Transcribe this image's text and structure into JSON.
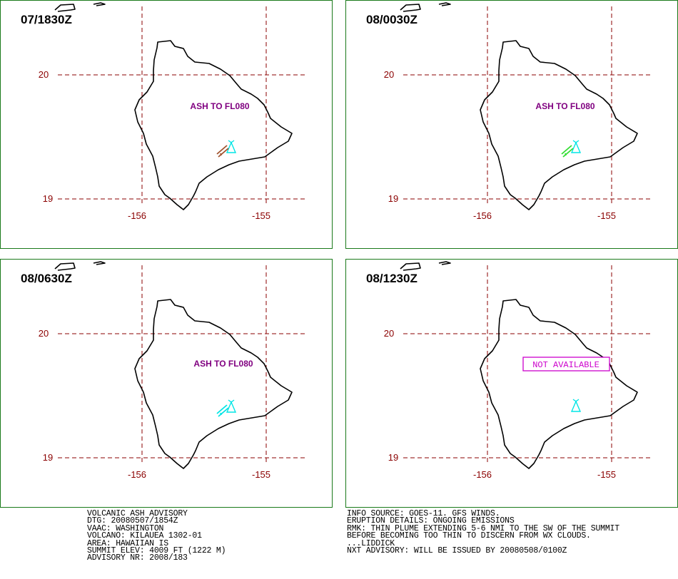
{
  "colors": {
    "frame": "#1a7a1a",
    "grid": "#8b0000",
    "coast": "#000000",
    "ash_label": "#800080",
    "not_available": "#cc00cc",
    "volcano": "#00e5e5",
    "plume_0": "#a0522d",
    "plume_1": "#33dd33",
    "plume_2": "#00e5e5"
  },
  "axes": {
    "lat_labels": [
      "20",
      "19"
    ],
    "lon_labels": [
      "-156",
      "-155"
    ]
  },
  "panels": [
    {
      "time": "07/1830Z",
      "label": "ASH TO FL080",
      "status": "ash",
      "plume_color": "#a0522d"
    },
    {
      "time": "08/0030Z",
      "label": "ASH TO FL080",
      "status": "ash",
      "plume_color": "#33dd33"
    },
    {
      "time": "08/0630Z",
      "label": "ASH TO FL080",
      "status": "ash",
      "plume_color": "#00e5e5"
    },
    {
      "time": "08/1230Z",
      "label": "NOT AVAILABLE",
      "status": "not_available",
      "plume_color": ""
    }
  ],
  "advisory_left": [
    "VOLCANIC ASH ADVISORY",
    "DTG: 20080507/1854Z",
    "VAAC: WASHINGTON",
    "VOLCANO: KILAUEA 1302-01",
    "AREA: HAWAIIAN IS",
    "SUMMIT ELEV: 4009 FT (1222 M)",
    "ADVISORY NR: 2008/183"
  ],
  "advisory_right": [
    "INFO SOURCE: GOES-11. GFS WINDS.",
    "ERUPTION DETAILS: ONGOING EMISSIONS",
    "RMK: THIN PLUME EXTENDING 5-6 NMI TO THE SW OF THE SUMMIT",
    "BEFORE BECOMING TOO THIN TO DISCERN FROM WX CLOUDS.",
    "...LIDDICK",
    "NXT ADVISORY: WILL BE ISSUED BY 20080508/0100Z"
  ]
}
